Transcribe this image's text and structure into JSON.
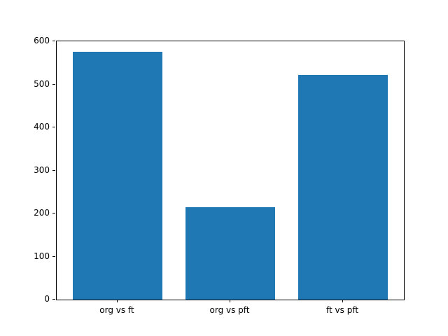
{
  "chart_data": {
    "type": "bar",
    "categories": [
      "org vs ft",
      "org vs pft",
      "ft vs pft"
    ],
    "values": [
      575,
      215,
      522
    ],
    "title": "",
    "xlabel": "",
    "ylabel": "",
    "ylim": [
      0,
      600
    ],
    "yticks": [
      0,
      100,
      200,
      300,
      400,
      500,
      600
    ],
    "bar_color": "#1f77b4",
    "bar_width_ratio": 0.8,
    "grid": false,
    "legend_position": "none",
    "background_color": "#ffffff",
    "axis_color": "#000000"
  }
}
